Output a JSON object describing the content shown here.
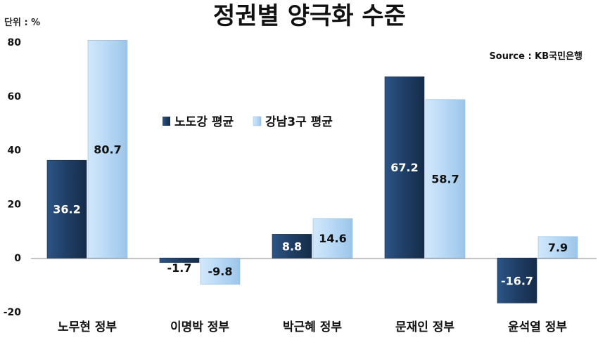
{
  "chart_data": {
    "type": "bar",
    "title": "정권별 양극화 수준",
    "unit_label": "단위 : %",
    "source": "Source :  KB국민은행",
    "categories": [
      "노무현 정부",
      "이명박 정부",
      "박근혜 정부",
      "문재인 정부",
      "윤석열 정부"
    ],
    "series": [
      {
        "name": "노도강 평균",
        "values": [
          36.2,
          -1.7,
          8.8,
          67.2,
          -16.7
        ]
      },
      {
        "name": "강남3구 평균",
        "values": [
          80.7,
          -9.8,
          14.6,
          58.7,
          7.9
        ]
      }
    ],
    "ylim": [
      -20,
      80
    ],
    "yticks": [
      80,
      60,
      40,
      20,
      0,
      -20
    ],
    "grid": false,
    "legend_position": "center-left",
    "colors": {
      "series0": "#1f3e66",
      "series1": "#b7d8f5",
      "label_light": "#ffffff",
      "label_dark": "#111111"
    }
  }
}
